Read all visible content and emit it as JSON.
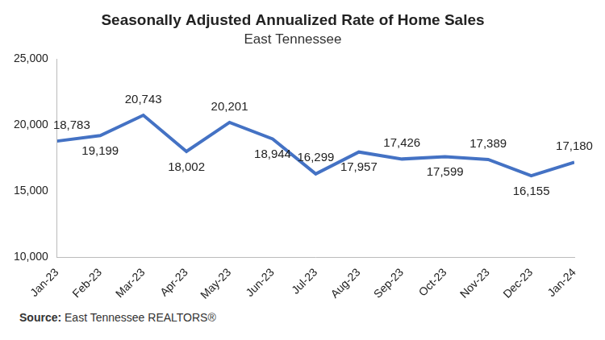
{
  "chart_data": {
    "type": "line",
    "title": "Seasonally Adjusted Annualized Rate of Home Sales",
    "subtitle": "East Tennessee",
    "annotations": [
      "Source: East Tennessee REALTORS®"
    ],
    "categories": [
      "Jan-23",
      "Feb-23",
      "Mar-23",
      "Apr-23",
      "May-23",
      "Jun-23",
      "Jul-23",
      "Aug-23",
      "Sep-23",
      "Oct-23",
      "Nov-23",
      "Dec-23",
      "Jan-24"
    ],
    "values": [
      18783,
      19199,
      20743,
      18002,
      20201,
      18944,
      16299,
      17957,
      17426,
      17599,
      17389,
      16155,
      17180
    ],
    "value_labels": [
      "18,783",
      "19,199",
      "20,743",
      "18,002",
      "20,201",
      "18,944",
      "16,299",
      "17,957",
      "17,426",
      "17,599",
      "17,389",
      "16,155",
      "17,180"
    ],
    "color": "#4472c4",
    "ylim": [
      10000,
      25000
    ],
    "yticks": [
      {
        "value": 10000,
        "label": "10,000"
      },
      {
        "value": 15000,
        "label": "15,000"
      },
      {
        "value": 20000,
        "label": "20,000"
      },
      {
        "value": 25000,
        "label": "25,000"
      }
    ],
    "grid": false,
    "data_labels": true,
    "marker": "none"
  }
}
